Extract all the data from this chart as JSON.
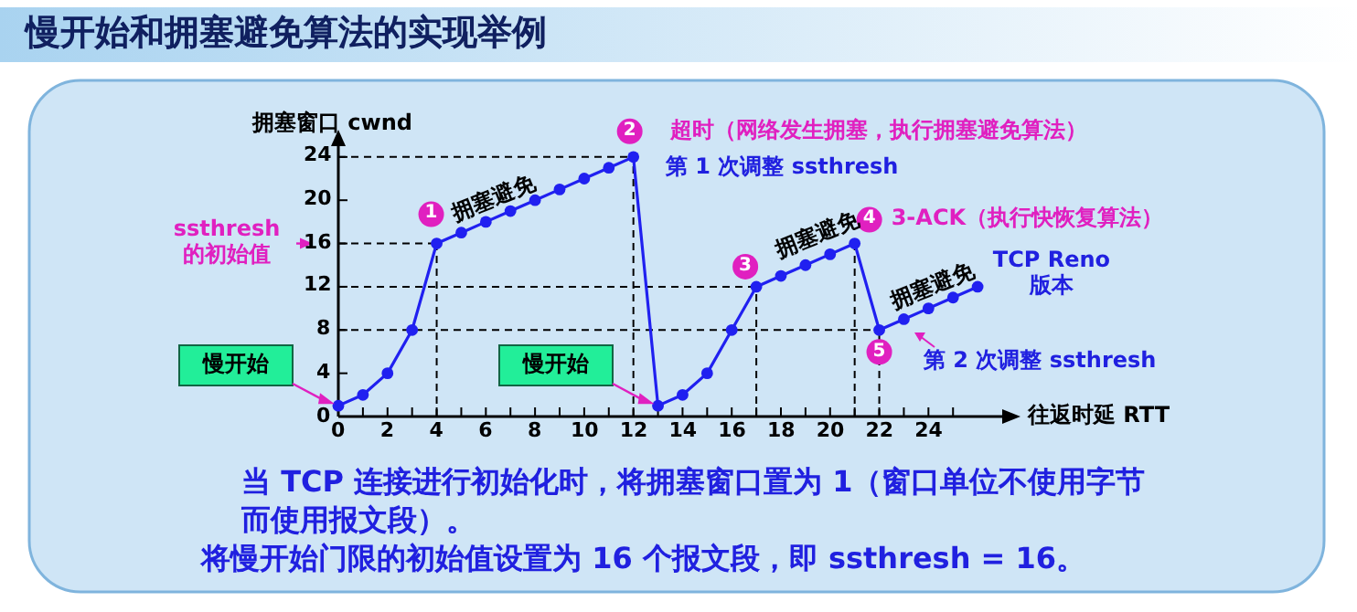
{
  "chart_data": {
    "type": "line",
    "title": "慢开始和拥塞避免算法的实现举例",
    "ylabel": "拥塞窗口 cwnd",
    "xlabel": "往返时延 RTT",
    "x": [
      0,
      1,
      2,
      3,
      4,
      5,
      6,
      7,
      8,
      9,
      10,
      11,
      12,
      13,
      14,
      15,
      16,
      17,
      18,
      19,
      20,
      21,
      22,
      23,
      24,
      25,
      26
    ],
    "series": [
      {
        "color": "#2020f0",
        "values": [
          1,
          2,
          4,
          8,
          16,
          17,
          18,
          19,
          20,
          21,
          22,
          23,
          24,
          1,
          2,
          4,
          8,
          12,
          13,
          14,
          15,
          16,
          8,
          9,
          10,
          11,
          12
        ]
      }
    ],
    "marker": "circle",
    "line_style": "solid",
    "xlim": [
      0,
      27
    ],
    "ylim": [
      0,
      25
    ],
    "xticks": [
      0,
      {
        "value": 1,
        "label": null
      },
      2,
      {
        "value": 3,
        "label": null
      },
      4,
      {
        "value": 5,
        "label": null
      },
      6,
      {
        "value": 7,
        "label": null
      },
      8,
      {
        "value": 9,
        "label": null
      },
      10,
      {
        "value": 11,
        "label": null
      },
      12,
      {
        "value": 13,
        "label": null
      },
      14,
      {
        "value": 15,
        "label": null
      },
      16,
      {
        "value": 17,
        "label": null
      },
      18,
      {
        "value": 19,
        "label": null
      },
      20,
      {
        "value": 21,
        "label": null
      },
      22,
      {
        "value": 23,
        "label": null
      },
      24,
      {
        "value": 25,
        "label": null
      }
    ],
    "yticks": [
      0,
      4,
      8,
      12,
      16,
      20,
      24
    ],
    "ref_lines": [
      {
        "axis": "y",
        "value": 24,
        "line_style": "dashed",
        "color": "#000000"
      },
      {
        "axis": "y",
        "value": 16,
        "line_style": "dashed",
        "color": "#000000"
      },
      {
        "axis": "y",
        "value": 12,
        "line_style": "dashed",
        "color": "#000000"
      },
      {
        "axis": "y",
        "value": 8,
        "line_style": "dashed",
        "color": "#000000"
      },
      {
        "axis": "x",
        "value": 4,
        "line_style": "dashed",
        "color": "#000000"
      },
      {
        "axis": "x",
        "value": 12,
        "line_style": "dashed",
        "color": "#000000"
      },
      {
        "axis": "x",
        "value": 17,
        "line_style": "dashed",
        "color": "#000000"
      },
      {
        "axis": "x",
        "value": 21,
        "line_style": "dashed",
        "color": "#000000"
      },
      {
        "axis": "x",
        "value": 22,
        "line_style": "dashed",
        "color": "#000000"
      }
    ],
    "annotations": [
      {
        "text": "1",
        "x": 4,
        "y": 16
      },
      {
        "text": "2",
        "x": 12,
        "y": 24
      },
      {
        "text": "3",
        "x": 17,
        "y": 12
      },
      {
        "text": "4",
        "x": 21,
        "y": 16
      },
      {
        "text": "5",
        "x": 22,
        "y": 8
      },
      {
        "text": "拥塞避免",
        "x": 6,
        "y": 18
      },
      {
        "text": "拥塞避免",
        "x": 19,
        "y": 14
      },
      {
        "text": "拥塞避免",
        "x": 24,
        "y": 10
      },
      {
        "text": "超时（网络发生拥塞，执行拥塞避免算法）",
        "x": 12,
        "y": 24
      },
      "第 1 次调整 ssthresh",
      {
        "text": "3-ACK（执行快恢复算法）",
        "x": 21,
        "y": 16
      },
      "TCP Reno 版本",
      "第 2 次调整 ssthresh",
      {
        "text": "ssthresh 的初始值",
        "x": 0,
        "y": 16
      },
      {
        "text": "慢开始",
        "x": 0,
        "y": 1
      },
      {
        "text": "慢开始",
        "x": 13,
        "y": 1
      },
      "当 TCP 连接进行初始化时，将拥塞窗口置为 1（窗口单位不使用字节而使用报文段）。",
      "将慢开始门限的初始值设置为 16 个报文段，即 ssthresh = 16。"
    ]
  }
}
